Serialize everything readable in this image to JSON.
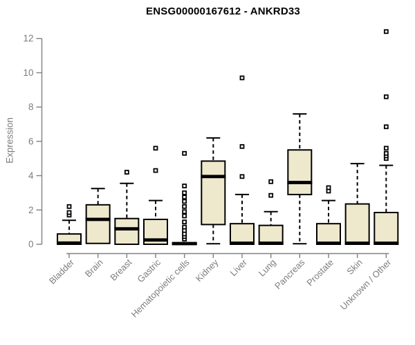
{
  "chart_data": {
    "type": "boxplot",
    "title": "ENSG00000167612 - ANKRD33",
    "ylabel": "Expression",
    "ylim": [
      0,
      12.6
    ],
    "yticks": [
      0,
      2,
      4,
      6,
      8,
      10,
      12
    ],
    "grid": false,
    "legend": "none",
    "colors": {
      "box_fill": "#EEE8CD",
      "box_stroke": "#000000",
      "median": "#000000",
      "axis": "#808080",
      "tick_label": "#7d7d7d",
      "title": "#000000"
    },
    "categories": [
      "Bladder",
      "Brain",
      "Breast",
      "Gastric",
      "Hematopoietic cells",
      "Kidney",
      "Liver",
      "Lung",
      "Pancreas",
      "Prostate",
      "Skin",
      "Unknown / Other"
    ],
    "boxes": [
      {
        "category": "Bladder",
        "whisker_low": 0,
        "q1": 0,
        "median": 0.07,
        "q3": 0.6,
        "whisker_high": 1.4,
        "outliers": [
          1.7,
          1.85,
          2.2
        ]
      },
      {
        "category": "Brain",
        "whisker_low": 0.05,
        "q1": 0.05,
        "median": 1.45,
        "q3": 2.3,
        "whisker_high": 3.25,
        "outliers": []
      },
      {
        "category": "Breast",
        "whisker_low": 0,
        "q1": 0,
        "median": 0.9,
        "q3": 1.5,
        "whisker_high": 3.55,
        "outliers": [
          4.2
        ]
      },
      {
        "category": "Gastric",
        "whisker_low": 0,
        "q1": 0,
        "median": 0.25,
        "q3": 1.45,
        "whisker_high": 2.55,
        "outliers": [
          4.3,
          5.6
        ]
      },
      {
        "category": "Hematopoietic cells",
        "whisker_low": 0,
        "q1": 0,
        "median": 0.04,
        "q3": 0.08,
        "whisker_high": 0.08,
        "outliers": [
          0.3,
          0.45,
          0.6,
          0.8,
          1.0,
          1.3,
          1.65,
          1.9,
          2.2,
          2.5,
          2.75,
          3.0,
          3.4,
          5.3
        ]
      },
      {
        "category": "Kidney",
        "whisker_low": 0.03,
        "q1": 1.15,
        "median": 3.95,
        "q3": 4.85,
        "whisker_high": 6.2,
        "outliers": []
      },
      {
        "category": "Liver",
        "whisker_low": 0,
        "q1": 0,
        "median": 0.06,
        "q3": 1.2,
        "whisker_high": 2.9,
        "outliers": [
          3.95,
          5.7,
          9.7
        ]
      },
      {
        "category": "Lung",
        "whisker_low": 0,
        "q1": 0,
        "median": 0.06,
        "q3": 1.1,
        "whisker_high": 1.9,
        "outliers": [
          2.85,
          3.65
        ]
      },
      {
        "category": "Pancreas",
        "whisker_low": 0.03,
        "q1": 2.9,
        "median": 3.6,
        "q3": 5.5,
        "whisker_high": 7.6,
        "outliers": []
      },
      {
        "category": "Prostate",
        "whisker_low": 0,
        "q1": 0,
        "median": 0.06,
        "q3": 1.2,
        "whisker_high": 2.55,
        "outliers": [
          3.1,
          3.3
        ]
      },
      {
        "category": "Skin",
        "whisker_low": 0,
        "q1": 0,
        "median": 0.06,
        "q3": 2.35,
        "whisker_high": 4.7,
        "outliers": []
      },
      {
        "category": "Unknown / Other",
        "whisker_low": 0,
        "q1": 0,
        "median": 0.06,
        "q3": 1.85,
        "whisker_high": 4.6,
        "outliers": [
          5.0,
          5.15,
          5.3,
          5.6,
          6.85,
          8.6,
          12.4
        ]
      }
    ]
  }
}
